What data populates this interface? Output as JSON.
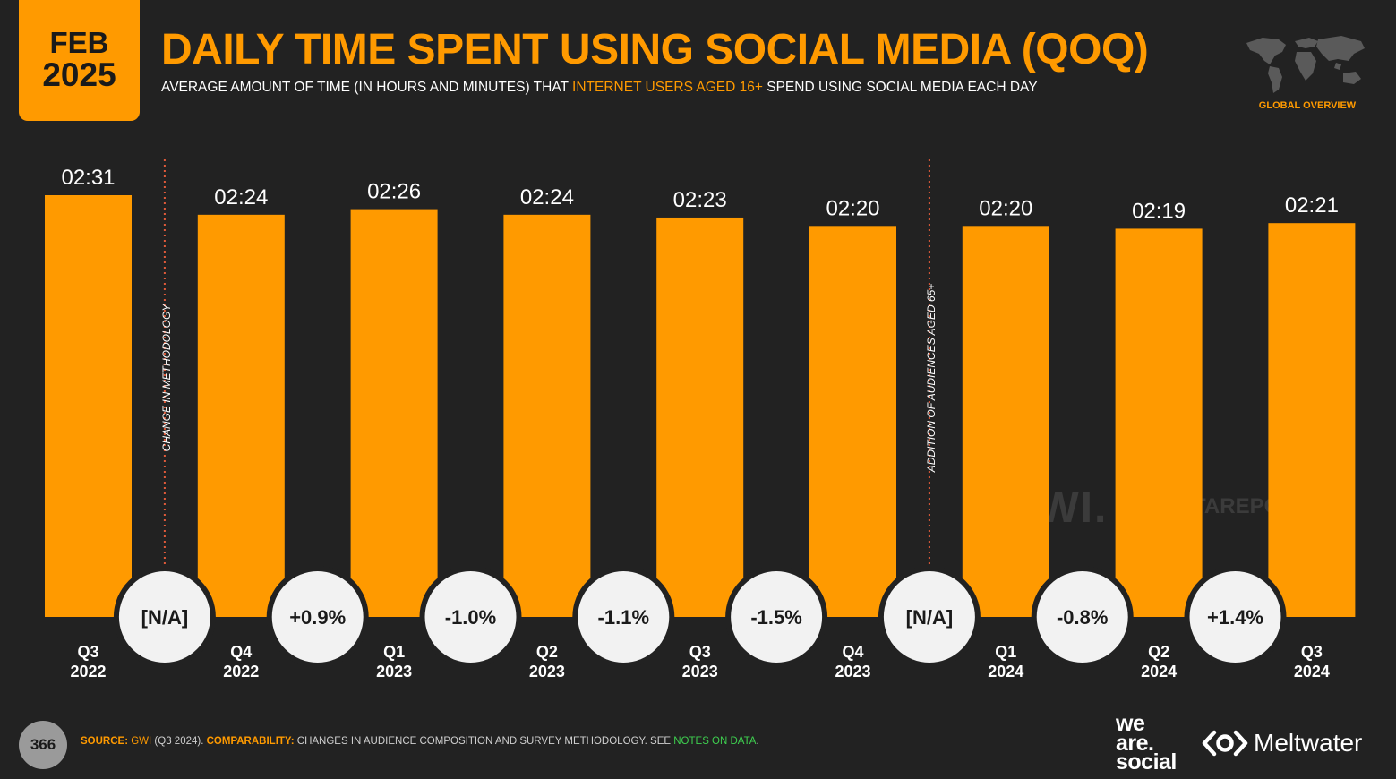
{
  "badge": {
    "month": "FEB",
    "year": "2025"
  },
  "title": "DAILY TIME SPENT USING SOCIAL MEDIA (QOQ)",
  "subtitle": {
    "before": "AVERAGE AMOUNT OF TIME (IN HOURS AND MINUTES) THAT ",
    "highlight": "INTERNET USERS AGED 16+",
    "after": " SPEND USING SOCIAL MEDIA EACH DAY"
  },
  "region_label": "GLOBAL OVERVIEW",
  "watermark": {
    "gwi": "GWI.",
    "datareportal": "DATAREPORTAL"
  },
  "chart_data": {
    "type": "bar",
    "categories": [
      [
        "Q3",
        "2022"
      ],
      [
        "Q4",
        "2022"
      ],
      [
        "Q1",
        "2023"
      ],
      [
        "Q2",
        "2023"
      ],
      [
        "Q3",
        "2023"
      ],
      [
        "Q4",
        "2023"
      ],
      [
        "Q1",
        "2024"
      ],
      [
        "Q2",
        "2024"
      ],
      [
        "Q3",
        "2024"
      ]
    ],
    "values_minutes": [
      151,
      144,
      146,
      144,
      143,
      140,
      140,
      139,
      141
    ],
    "value_labels": [
      "02:31",
      "02:24",
      "02:26",
      "02:24",
      "02:23",
      "02:20",
      "02:20",
      "02:19",
      "02:21"
    ],
    "changes": [
      "[N/A]",
      "+0.9%",
      "-1.0%",
      "-1.1%",
      "-1.5%",
      "[N/A]",
      "-0.8%",
      "+1.4%"
    ],
    "dividers": [
      {
        "after_index": 0,
        "label": "CHANGE IN METHODOLOGY"
      },
      {
        "after_index": 5,
        "label": "ADDITION OF AUDIENCES AGED 65+"
      }
    ],
    "ylim": [
      0,
      151
    ],
    "bar_color": "#FF9A00",
    "grid": false
  },
  "footer": {
    "page_number": "366",
    "source_label": "SOURCE:",
    "source_name": "GWI",
    "source_detail": " (Q3 2024). ",
    "comparability_label": "COMPARABILITY:",
    "comparability_text": " CHANGES IN AUDIENCE COMPOSITION AND SURVEY METHODOLOGY. SEE ",
    "notes_link": "NOTES ON DATA",
    "notes_end": "."
  },
  "brands": {
    "was_line1": "we",
    "was_line2": "are.",
    "was_line3": "social",
    "meltwater": "Meltwater"
  },
  "colors": {
    "accent": "#FF9A00",
    "background": "#222222",
    "circle": "#F2F2F2",
    "notes_green": "#3ECF4F"
  }
}
